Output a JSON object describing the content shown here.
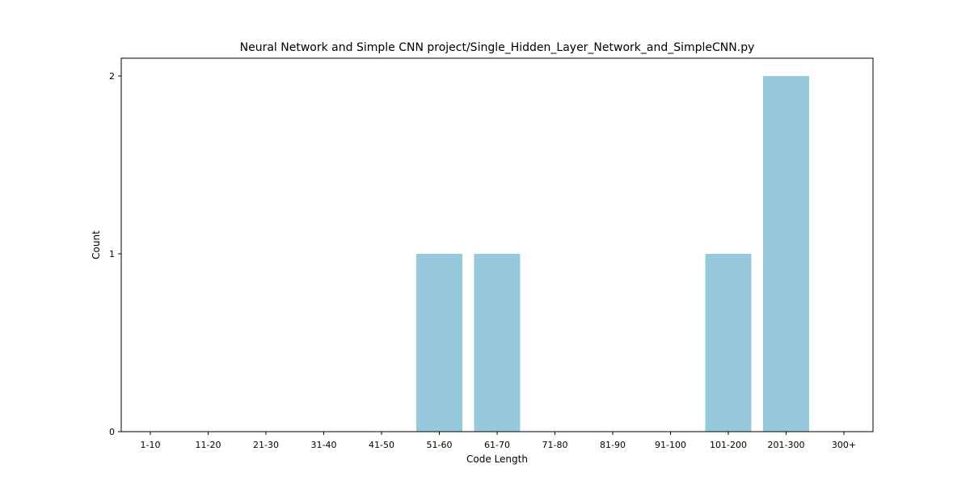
{
  "chart_data": {
    "type": "bar",
    "title": "Neural Network and Simple CNN project/Single_Hidden_Layer_Network_and_SimpleCNN.py",
    "xlabel": "Code Length",
    "ylabel": "Count",
    "categories": [
      "1-10",
      "11-20",
      "21-30",
      "31-40",
      "41-50",
      "51-60",
      "61-70",
      "71-80",
      "81-90",
      "91-100",
      "101-200",
      "201-300",
      "300+"
    ],
    "values": [
      0,
      0,
      0,
      0,
      0,
      1,
      1,
      0,
      0,
      0,
      1,
      2,
      0
    ],
    "ylim": [
      0,
      2.1
    ],
    "yticks": [
      0,
      1,
      2
    ],
    "grid": false,
    "bar_color": "#96c9dd"
  }
}
